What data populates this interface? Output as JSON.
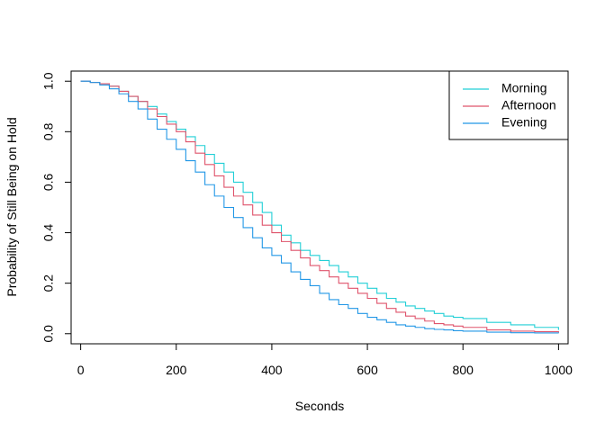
{
  "chart_data": {
    "type": "line",
    "step": true,
    "xlabel": "Seconds",
    "ylabel": "Probability of Still Being on Hold",
    "xlim": [
      -20,
      1020
    ],
    "ylim": [
      -0.04,
      1.04
    ],
    "x_ticks": [
      0,
      200,
      400,
      600,
      800,
      1000
    ],
    "y_ticks": [
      0.0,
      0.2,
      0.4,
      0.6,
      0.8,
      1.0
    ],
    "x_tick_labels": [
      "0",
      "200",
      "400",
      "600",
      "800",
      "1000"
    ],
    "y_tick_labels": [
      "0.0",
      "0.2",
      "0.4",
      "0.6",
      "0.8",
      "1.0"
    ],
    "grid": false,
    "legend": {
      "position": "top-right"
    },
    "series": [
      {
        "name": "Morning",
        "color": "#22CFD6",
        "x": [
          0,
          20,
          40,
          60,
          80,
          100,
          120,
          140,
          160,
          180,
          200,
          220,
          240,
          260,
          280,
          300,
          320,
          340,
          360,
          380,
          400,
          420,
          440,
          460,
          480,
          500,
          520,
          540,
          560,
          580,
          600,
          620,
          640,
          660,
          680,
          700,
          720,
          740,
          760,
          780,
          800,
          850,
          900,
          950,
          1000
        ],
        "y": [
          1.0,
          0.995,
          0.99,
          0.98,
          0.96,
          0.94,
          0.92,
          0.9,
          0.87,
          0.84,
          0.81,
          0.78,
          0.745,
          0.71,
          0.675,
          0.64,
          0.6,
          0.56,
          0.52,
          0.48,
          0.43,
          0.39,
          0.36,
          0.33,
          0.31,
          0.29,
          0.27,
          0.245,
          0.225,
          0.2,
          0.18,
          0.16,
          0.14,
          0.125,
          0.11,
          0.1,
          0.09,
          0.08,
          0.07,
          0.065,
          0.06,
          0.045,
          0.035,
          0.025,
          0.015
        ]
      },
      {
        "name": "Afternoon",
        "color": "#DF536B",
        "x": [
          0,
          20,
          40,
          60,
          80,
          100,
          120,
          140,
          160,
          180,
          200,
          220,
          240,
          260,
          280,
          300,
          320,
          340,
          360,
          380,
          400,
          420,
          440,
          460,
          480,
          500,
          520,
          540,
          560,
          580,
          600,
          620,
          640,
          660,
          680,
          700,
          720,
          740,
          760,
          780,
          800,
          850,
          900,
          950,
          1000
        ],
        "y": [
          1.0,
          0.995,
          0.99,
          0.98,
          0.96,
          0.94,
          0.92,
          0.89,
          0.86,
          0.83,
          0.8,
          0.76,
          0.715,
          0.67,
          0.625,
          0.58,
          0.545,
          0.51,
          0.47,
          0.43,
          0.4,
          0.365,
          0.33,
          0.3,
          0.27,
          0.25,
          0.225,
          0.2,
          0.18,
          0.16,
          0.14,
          0.12,
          0.1,
          0.085,
          0.07,
          0.06,
          0.05,
          0.04,
          0.035,
          0.03,
          0.025,
          0.015,
          0.01,
          0.008,
          0.005
        ]
      },
      {
        "name": "Evening",
        "color": "#2297E6",
        "x": [
          0,
          20,
          40,
          60,
          80,
          100,
          120,
          140,
          160,
          180,
          200,
          220,
          240,
          260,
          280,
          300,
          320,
          340,
          360,
          380,
          400,
          420,
          440,
          460,
          480,
          500,
          520,
          540,
          560,
          580,
          600,
          620,
          640,
          660,
          680,
          700,
          720,
          740,
          760,
          780,
          800,
          850,
          900,
          950,
          1000
        ],
        "y": [
          1.0,
          0.995,
          0.985,
          0.97,
          0.95,
          0.92,
          0.89,
          0.85,
          0.81,
          0.77,
          0.73,
          0.685,
          0.64,
          0.59,
          0.545,
          0.5,
          0.46,
          0.42,
          0.38,
          0.34,
          0.31,
          0.28,
          0.245,
          0.215,
          0.19,
          0.16,
          0.135,
          0.115,
          0.1,
          0.08,
          0.065,
          0.055,
          0.045,
          0.035,
          0.03,
          0.025,
          0.02,
          0.017,
          0.015,
          0.012,
          0.01,
          0.006,
          0.004,
          0.003,
          0.002
        ]
      }
    ]
  }
}
